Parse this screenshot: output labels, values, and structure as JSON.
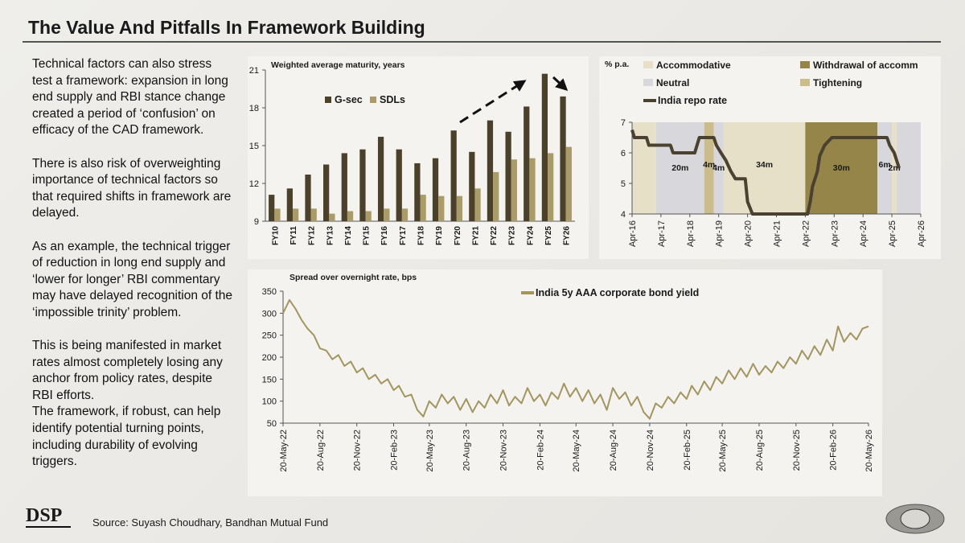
{
  "title": "The Value And Pitfalls In Framework Building",
  "paragraphs": [
    "Technical factors can also stress test a framework: expansion in long end supply and RBI stance change created a period of ‘confusion’ on efficacy of the CAD framework.",
    "There is also risk of overweighting importance of technical factors so that required shifts in framework are delayed.",
    "As an example, the technical trigger of reduction in long end supply and ‘lower for longer’ RBI commentary may have delayed recognition of the ‘impossible trinity’ problem.",
    "This is being manifested in market rates almost completely losing any anchor from policy rates, despite RBI efforts.",
    "The framework, if robust, can help identify potential turning points, including durability of evolving triggers."
  ],
  "logo": "DSP",
  "source": "Source: Suyash Choudhary, Bandhan Mutual Fund",
  "chart_data": [
    {
      "type": "bar",
      "title": "Weighted average maturity, years",
      "categories": [
        "FY10",
        "FY11",
        "FY12",
        "FY13",
        "FY14",
        "FY15",
        "FY16",
        "FY17",
        "FY18",
        "FY19",
        "FY20",
        "FY21",
        "FY22",
        "FY23",
        "FY24",
        "FY25",
        "FY26"
      ],
      "series": [
        {
          "name": "G-sec",
          "color": "#4b412b",
          "values": [
            11.1,
            11.6,
            12.7,
            13.5,
            14.4,
            14.7,
            15.7,
            14.7,
            13.6,
            14.0,
            16.2,
            14.5,
            17.0,
            16.1,
            18.1,
            20.7,
            18.9
          ]
        },
        {
          "name": "SDLs",
          "color": "#a99c68",
          "values": [
            10.0,
            10.0,
            10.0,
            9.6,
            9.8,
            9.8,
            10.0,
            10.0,
            11.1,
            11.0,
            11.0,
            11.6,
            12.9,
            13.9,
            14.0,
            14.4,
            14.9
          ]
        }
      ],
      "ylim": [
        9,
        21
      ],
      "yticks": [
        9,
        12,
        15,
        18,
        21
      ],
      "grid": false
    },
    {
      "type": "line",
      "ylabel": "% p.a.",
      "regimes": [
        {
          "name": "Accommodative",
          "color": "#e7e0c9"
        },
        {
          "name": "Withdrawal of accomm",
          "color": "#958549"
        },
        {
          "name": "Neutral",
          "color": "#d8d8dc"
        },
        {
          "name": "Tightening",
          "color": "#cbbd8b"
        }
      ],
      "bands": [
        {
          "start": 2016.25,
          "end": 2017.08,
          "color": "#e7e0c9"
        },
        {
          "start": 2017.08,
          "end": 2018.75,
          "color": "#d8d8dc",
          "label": "20m"
        },
        {
          "start": 2018.75,
          "end": 2019.08,
          "color": "#cbbd8b",
          "label": "4m"
        },
        {
          "start": 2019.08,
          "end": 2019.42,
          "color": "#d8d8dc",
          "label": "4m"
        },
        {
          "start": 2019.42,
          "end": 2022.25,
          "color": "#e7e0c9",
          "label": "34m"
        },
        {
          "start": 2022.25,
          "end": 2024.75,
          "color": "#958549",
          "label": "30m"
        },
        {
          "start": 2024.75,
          "end": 2025.25,
          "color": "#d8d8dc",
          "label": "6m"
        },
        {
          "start": 2025.25,
          "end": 2025.42,
          "color": "#e7e0c9",
          "label": "2m"
        },
        {
          "start": 2025.42,
          "end": 2026.25,
          "color": "#d8d8dc"
        }
      ],
      "x": [
        2016.25,
        2016.33,
        2016.75,
        2016.83,
        2017.58,
        2017.67,
        2018.42,
        2018.5,
        2018.58,
        2019.08,
        2019.17,
        2019.33,
        2019.5,
        2019.67,
        2019.83,
        2020.17,
        2020.25,
        2020.42,
        2022.33,
        2022.42,
        2022.5,
        2022.67,
        2022.75,
        2022.92,
        2023.17,
        2025.08,
        2025.17,
        2025.33,
        2025.5
      ],
      "series": [
        {
          "name": "India repo rate",
          "color": "#4a4131",
          "values": [
            6.75,
            6.5,
            6.5,
            6.25,
            6.25,
            6.0,
            6.0,
            6.25,
            6.5,
            6.5,
            6.25,
            6.0,
            5.75,
            5.4,
            5.15,
            5.15,
            4.4,
            4.0,
            4.0,
            4.4,
            4.9,
            5.4,
            5.9,
            6.25,
            6.5,
            6.5,
            6.25,
            6.0,
            5.5
          ]
        }
      ],
      "xlim": [
        2016.25,
        2026.25
      ],
      "xticks": [
        {
          "value": 2016.25,
          "label": "Apr-16"
        },
        {
          "value": 2017.25,
          "label": "Apr-17"
        },
        {
          "value": 2018.25,
          "label": "Apr-18"
        },
        {
          "value": 2019.25,
          "label": "Apr-19"
        },
        {
          "value": 2020.25,
          "label": "Apr-20"
        },
        {
          "value": 2021.25,
          "label": "Apr-21"
        },
        {
          "value": 2022.25,
          "label": "Apr-22"
        },
        {
          "value": 2023.25,
          "label": "Apr-23"
        },
        {
          "value": 2024.25,
          "label": "Apr-24"
        },
        {
          "value": 2025.25,
          "label": "Apr-25"
        },
        {
          "value": 2026.25,
          "label": "Apr-26"
        }
      ],
      "ylim": [
        4,
        7
      ],
      "yticks": [
        4,
        5,
        6,
        7
      ],
      "grid": false
    },
    {
      "type": "line",
      "title": "Spread over overnight rate, bps",
      "x": [
        "2022-05-20",
        "2022-06-05",
        "2022-06-20",
        "2022-07-05",
        "2022-07-20",
        "2022-08-05",
        "2022-08-20",
        "2022-09-05",
        "2022-09-20",
        "2022-10-05",
        "2022-10-20",
        "2022-11-05",
        "2022-11-20",
        "2022-12-05",
        "2022-12-20",
        "2023-01-05",
        "2023-01-20",
        "2023-02-05",
        "2023-02-20",
        "2023-03-05",
        "2023-03-20",
        "2023-04-05",
        "2023-04-20",
        "2023-05-05",
        "2023-05-20",
        "2023-06-05",
        "2023-06-20",
        "2023-07-05",
        "2023-07-20",
        "2023-08-05",
        "2023-08-20",
        "2023-09-05",
        "2023-09-20",
        "2023-10-05",
        "2023-10-20",
        "2023-11-05",
        "2023-11-20",
        "2023-12-05",
        "2023-12-20",
        "2024-01-05",
        "2024-01-20",
        "2024-02-05",
        "2024-02-20",
        "2024-03-05",
        "2024-03-20",
        "2024-04-05",
        "2024-04-20",
        "2024-05-05",
        "2024-05-20",
        "2024-06-05",
        "2024-06-20",
        "2024-07-05",
        "2024-07-20",
        "2024-08-05",
        "2024-08-20",
        "2024-09-05",
        "2024-09-20",
        "2024-10-05",
        "2024-10-20",
        "2024-11-05",
        "2024-11-20",
        "2024-12-05",
        "2024-12-20",
        "2025-01-05",
        "2025-01-20",
        "2025-02-05",
        "2025-02-20",
        "2025-03-05",
        "2025-03-20",
        "2025-04-05",
        "2025-04-20",
        "2025-05-05",
        "2025-05-20",
        "2025-06-05",
        "2025-06-20",
        "2025-07-05",
        "2025-07-20",
        "2025-08-05",
        "2025-08-20",
        "2025-09-05",
        "2025-09-20",
        "2025-10-05",
        "2025-10-20",
        "2025-11-05",
        "2025-11-20",
        "2025-12-05",
        "2025-12-20",
        "2026-01-05",
        "2026-01-20",
        "2026-02-05",
        "2026-02-20",
        "2026-03-05",
        "2026-03-20",
        "2026-04-05",
        "2026-04-20",
        "2026-05-05",
        "2026-05-20"
      ],
      "series": [
        {
          "name": "India 5y AAA corporate bond yield",
          "color": "#a29560",
          "values": [
            300,
            330,
            310,
            285,
            265,
            250,
            220,
            215,
            195,
            205,
            180,
            190,
            165,
            175,
            150,
            160,
            140,
            150,
            125,
            135,
            110,
            115,
            80,
            65,
            100,
            85,
            115,
            95,
            110,
            80,
            105,
            75,
            100,
            85,
            115,
            95,
            125,
            90,
            110,
            95,
            130,
            100,
            115,
            90,
            120,
            105,
            140,
            110,
            130,
            100,
            125,
            95,
            115,
            80,
            130,
            105,
            120,
            90,
            110,
            75,
            60,
            95,
            85,
            110,
            95,
            120,
            105,
            135,
            115,
            145,
            125,
            155,
            140,
            170,
            150,
            175,
            155,
            185,
            160,
            180,
            165,
            190,
            175,
            200,
            185,
            215,
            195,
            225,
            205,
            240,
            215,
            270,
            235,
            255,
            240,
            265,
            270
          ]
        }
      ],
      "xlim": [
        "2022-05-20",
        "2026-05-20"
      ],
      "xticks": [
        {
          "value": "2022-05-20",
          "label": "20-May-22"
        },
        {
          "value": "2022-08-20",
          "label": "20-Aug-22"
        },
        {
          "value": "2022-11-20",
          "label": "20-Nov-22"
        },
        {
          "value": "2023-02-20",
          "label": "20-Feb-23"
        },
        {
          "value": "2023-05-20",
          "label": "20-May-23"
        },
        {
          "value": "2023-08-20",
          "label": "20-Aug-23"
        },
        {
          "value": "2023-11-20",
          "label": "20-Nov-23"
        },
        {
          "value": "2024-02-20",
          "label": "20-Feb-24"
        },
        {
          "value": "2024-05-20",
          "label": "20-May-24"
        },
        {
          "value": "2024-08-20",
          "label": "20-Aug-24"
        },
        {
          "value": "2024-11-20",
          "label": "20-Nov-24"
        },
        {
          "value": "2025-02-20",
          "label": "20-Feb-25"
        },
        {
          "value": "2025-05-20",
          "label": "20-May-25"
        },
        {
          "value": "2025-08-20",
          "label": "20-Aug-25"
        },
        {
          "value": "2025-11-20",
          "label": "20-Nov-25"
        },
        {
          "value": "2026-02-20",
          "label": "20-Feb-26"
        },
        {
          "value": "2026-05-20",
          "label": "20-May-26"
        }
      ],
      "ylim": [
        50,
        350
      ],
      "yticks": [
        50,
        100,
        150,
        200,
        250,
        300,
        350
      ],
      "grid": false
    }
  ]
}
